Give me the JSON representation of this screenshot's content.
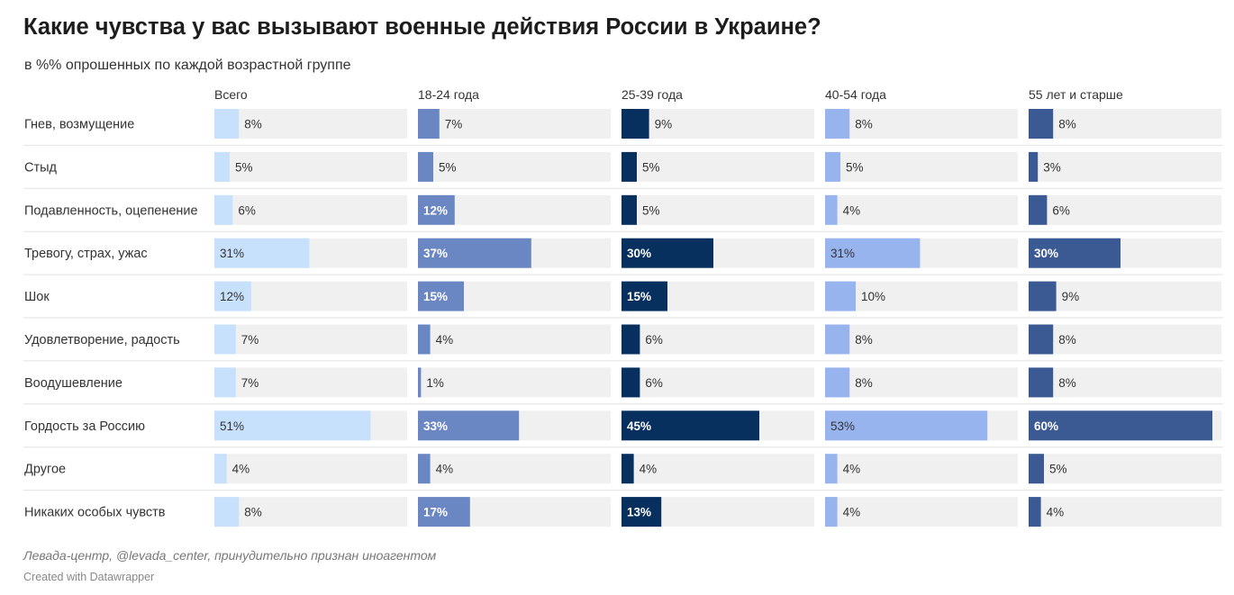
{
  "header": {
    "title": "Какие чувства у вас вызывают военные действия России в Украине?",
    "subtitle": "в %% опрошенных по каждой возрастной группе"
  },
  "footer": {
    "source": "Левада-центр, @levada_center, принудительно признан иноагентом",
    "credit": "Created with Datawrapper"
  },
  "colors": {
    "track": "#f0f0f0",
    "separator": "#e2e2e2",
    "label_dark": "#333333",
    "label_light": "#ffffff"
  },
  "chart_data": {
    "type": "bar",
    "unit": "%",
    "xlim": [
      0,
      60
    ],
    "categories": [
      "Гнев, возмущение",
      "Стыд",
      "Подавленность, оцепенение",
      "Тревогу, страх, ужас",
      "Шок",
      "Удовлетворение, радость",
      "Воодушевление",
      "Гордость за Россию",
      "Другое",
      "Никаких особых чувств"
    ],
    "series": [
      {
        "name": "Всего",
        "color": "#c7e0fb",
        "values": [
          8,
          5,
          6,
          31,
          12,
          7,
          7,
          51,
          4,
          8
        ]
      },
      {
        "name": "18-24 года",
        "color": "#6a87c4",
        "values": [
          7,
          5,
          12,
          37,
          15,
          4,
          1,
          33,
          4,
          17
        ]
      },
      {
        "name": "25-39 года",
        "color": "#07305f",
        "values": [
          9,
          5,
          5,
          30,
          15,
          6,
          6,
          45,
          4,
          13
        ]
      },
      {
        "name": "40-54 года",
        "color": "#98b4ef",
        "values": [
          8,
          5,
          4,
          31,
          10,
          8,
          8,
          53,
          4,
          4
        ]
      },
      {
        "name": "55 лет и старше",
        "color": "#3b5a93",
        "values": [
          8,
          3,
          6,
          30,
          9,
          8,
          8,
          60,
          5,
          4
        ]
      }
    ]
  }
}
